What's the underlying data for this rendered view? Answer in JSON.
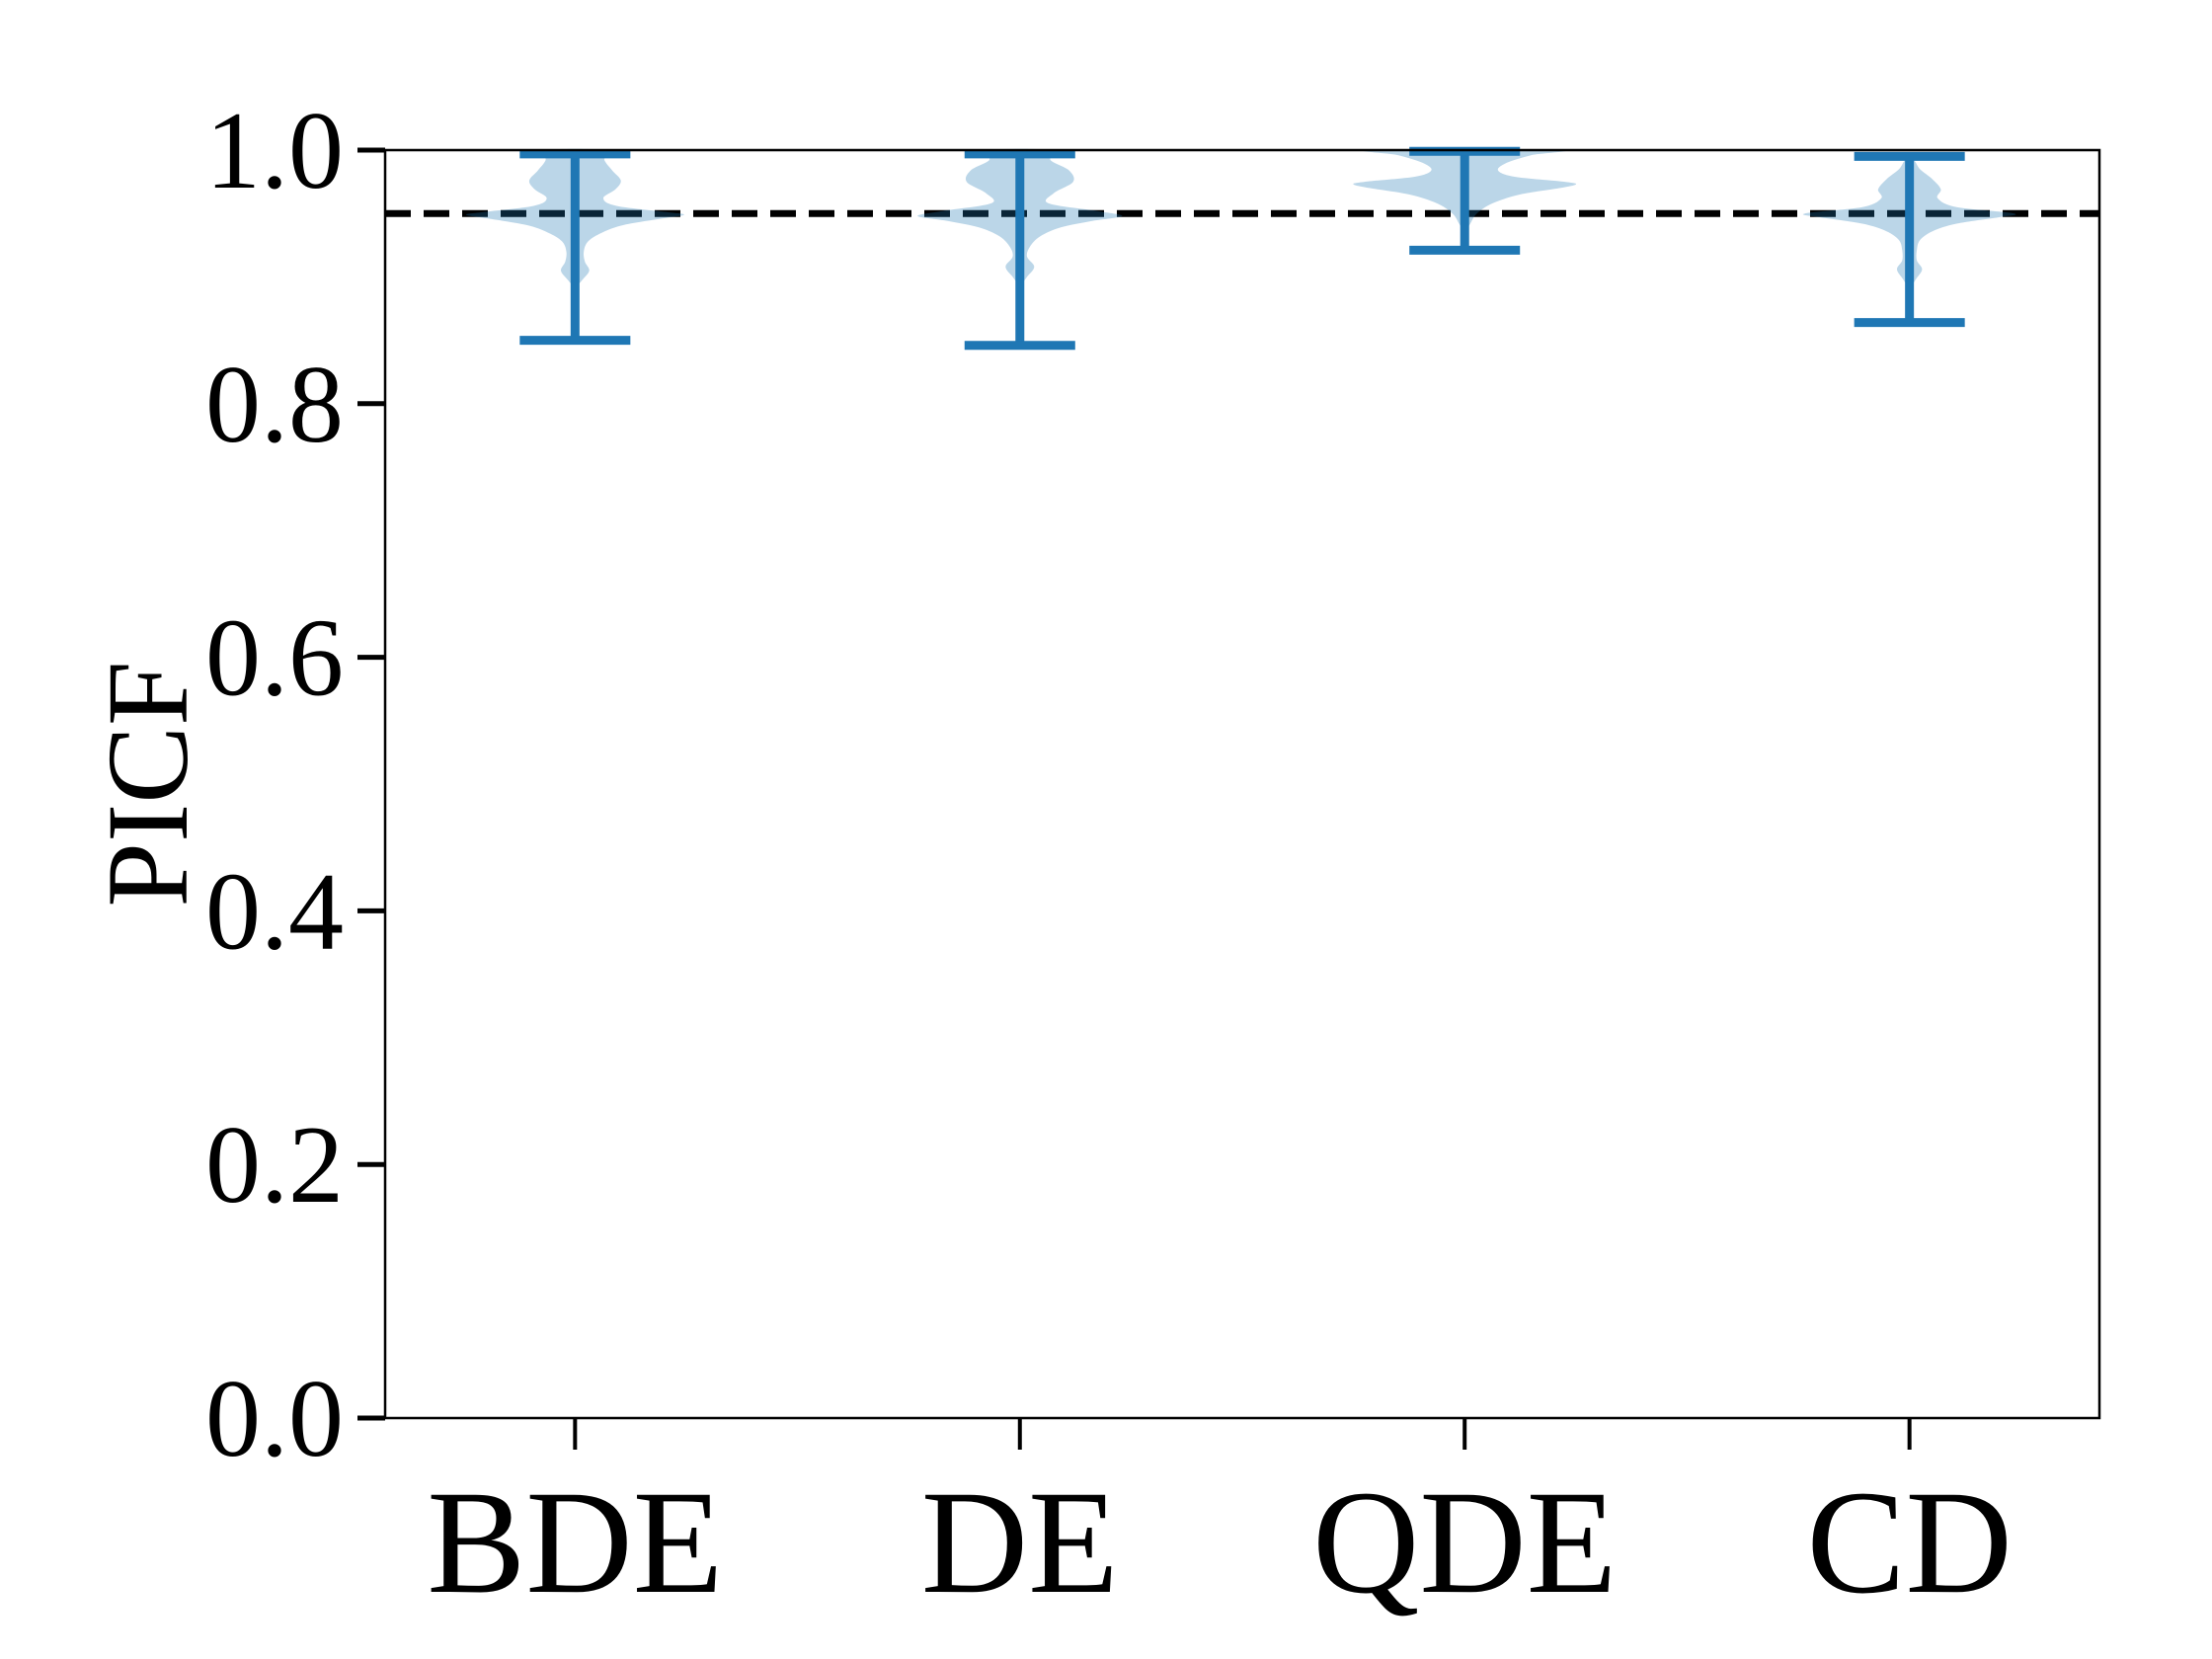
{
  "chart_data": {
    "type": "violin",
    "title": "",
    "xlabel": "",
    "ylabel": "PICF",
    "categories": [
      "BDE",
      "DE",
      "QDE",
      "CD"
    ],
    "ylim": [
      0.0,
      1.0
    ],
    "yticks": [
      0.0,
      0.2,
      0.4,
      0.6,
      0.8,
      1.0
    ],
    "ytick_labels": [
      "0.0",
      "0.2",
      "0.4",
      "0.6",
      "0.8",
      "1.0"
    ],
    "grid": false,
    "legend": null,
    "reference_line": {
      "value": 0.95,
      "style": "dashed",
      "color": "#000000"
    },
    "colors": {
      "violin_fill": "#1f77b4",
      "violin_fill_opacity": 0.3,
      "errorbar": "#1f77b4",
      "axis": "#000000"
    },
    "series": [
      {
        "name": "BDE",
        "whisker_min": 0.85,
        "whisker_max": 0.997,
        "width": 0.49,
        "profile": [
          [
            1.0,
            0.26
          ],
          [
            0.992,
            0.27
          ],
          [
            0.984,
            0.34
          ],
          [
            0.976,
            0.42
          ],
          [
            0.969,
            0.37
          ],
          [
            0.962,
            0.26
          ],
          [
            0.956,
            0.38
          ],
          [
            0.951,
            0.85
          ],
          [
            0.949,
            1.0
          ],
          [
            0.946,
            0.8
          ],
          [
            0.941,
            0.45
          ],
          [
            0.935,
            0.25
          ],
          [
            0.928,
            0.12
          ],
          [
            0.92,
            0.08
          ],
          [
            0.912,
            0.09
          ],
          [
            0.905,
            0.13
          ],
          [
            0.898,
            0.07
          ],
          [
            0.891,
            0.0
          ]
        ]
      },
      {
        "name": "DE",
        "whisker_min": 0.846,
        "whisker_max": 0.997,
        "width": 0.46,
        "profile": [
          [
            1.0,
            0.3
          ],
          [
            0.992,
            0.3
          ],
          [
            0.984,
            0.48
          ],
          [
            0.975,
            0.52
          ],
          [
            0.966,
            0.33
          ],
          [
            0.958,
            0.28
          ],
          [
            0.952,
            0.75
          ],
          [
            0.948,
            1.0
          ],
          [
            0.944,
            0.7
          ],
          [
            0.939,
            0.4
          ],
          [
            0.932,
            0.2
          ],
          [
            0.924,
            0.1
          ],
          [
            0.916,
            0.07
          ],
          [
            0.908,
            0.14
          ],
          [
            0.9,
            0.07
          ],
          [
            0.892,
            0.0
          ]
        ]
      },
      {
        "name": "QDE",
        "whisker_min": 0.921,
        "whisker_max": 0.999,
        "width": 0.5,
        "profile": [
          [
            1.0,
            0.84
          ],
          [
            0.996,
            0.6
          ],
          [
            0.99,
            0.38
          ],
          [
            0.984,
            0.3
          ],
          [
            0.979,
            0.45
          ],
          [
            0.975,
            0.9
          ],
          [
            0.973,
            1.0
          ],
          [
            0.97,
            0.85
          ],
          [
            0.965,
            0.5
          ],
          [
            0.958,
            0.25
          ],
          [
            0.95,
            0.11
          ],
          [
            0.942,
            0.05
          ],
          [
            0.934,
            0.0
          ]
        ]
      },
      {
        "name": "CD",
        "whisker_min": 0.864,
        "whisker_max": 0.995,
        "width": 0.47,
        "profile": [
          [
            0.992,
            0.04
          ],
          [
            0.985,
            0.1
          ],
          [
            0.977,
            0.22
          ],
          [
            0.969,
            0.3
          ],
          [
            0.962,
            0.27
          ],
          [
            0.955,
            0.45
          ],
          [
            0.95,
            1.0
          ],
          [
            0.947,
            0.85
          ],
          [
            0.942,
            0.45
          ],
          [
            0.936,
            0.22
          ],
          [
            0.929,
            0.1
          ],
          [
            0.921,
            0.07
          ],
          [
            0.913,
            0.07
          ],
          [
            0.906,
            0.12
          ],
          [
            0.898,
            0.06
          ],
          [
            0.89,
            0.0
          ]
        ]
      }
    ]
  }
}
